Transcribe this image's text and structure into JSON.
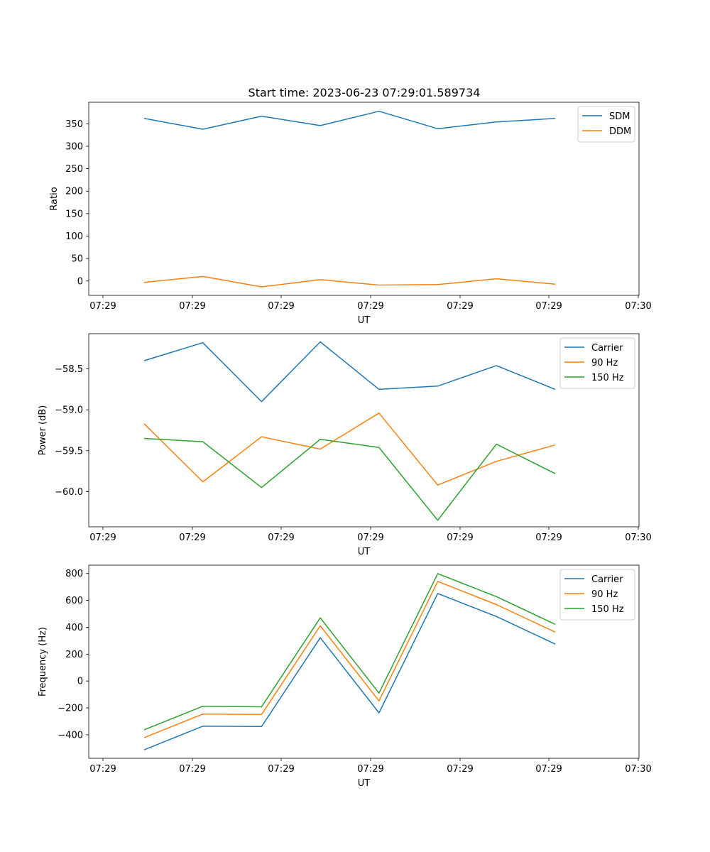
{
  "figure": {
    "title": "Start time: 2023-06-23 07:29:01.589734"
  },
  "chart_data": [
    {
      "type": "line",
      "xlabel": "UT",
      "ylabel": "Ratio",
      "x_tick_labels": [
        "07:29",
        "07:29",
        "07:29",
        "07:29",
        "07:29",
        "07:29",
        "07:30"
      ],
      "y_ticks": [
        0,
        50,
        100,
        150,
        200,
        250,
        300,
        350
      ],
      "ylim": [
        -32,
        398
      ],
      "legend": "top-right",
      "series": [
        {
          "name": "SDM",
          "color": "#1f77b4",
          "values": [
            362,
            338,
            367,
            346,
            378,
            339,
            354,
            362
          ]
        },
        {
          "name": "DDM",
          "color": "#ff7f0e",
          "values": [
            -3,
            10,
            -13,
            3,
            -9,
            -8,
            5,
            -7
          ]
        }
      ]
    },
    {
      "type": "line",
      "xlabel": "UT",
      "ylabel": "Power (dB)",
      "x_tick_labels": [
        "07:29",
        "07:29",
        "07:29",
        "07:29",
        "07:29",
        "07:29",
        "07:30"
      ],
      "y_ticks": [
        -60.0,
        -59.5,
        -59.0,
        -58.5
      ],
      "y_tick_labels": [
        "−60.0",
        "−59.5",
        "−59.0",
        "−58.5"
      ],
      "ylim": [
        -60.43,
        -58.07
      ],
      "legend": "top-right",
      "series": [
        {
          "name": "Carrier",
          "color": "#1f77b4",
          "values": [
            -58.4,
            -58.18,
            -58.9,
            -58.17,
            -58.75,
            -58.71,
            -58.46,
            -58.75
          ]
        },
        {
          "name": "90 Hz",
          "color": "#ff7f0e",
          "values": [
            -59.17,
            -59.88,
            -59.33,
            -59.48,
            -59.04,
            -59.92,
            -59.63,
            -59.43
          ]
        },
        {
          "name": "150 Hz",
          "color": "#2ca02c",
          "values": [
            -59.35,
            -59.39,
            -59.95,
            -59.36,
            -59.46,
            -60.35,
            -59.42,
            -59.78
          ]
        }
      ]
    },
    {
      "type": "line",
      "xlabel": "UT",
      "ylabel": "Frequency (Hz)",
      "x_tick_labels": [
        "07:29",
        "07:29",
        "07:29",
        "07:29",
        "07:29",
        "07:29",
        "07:30"
      ],
      "y_ticks": [
        -400,
        -200,
        0,
        200,
        400,
        600,
        800
      ],
      "y_tick_labels": [
        "−400",
        "−200",
        "0",
        "200",
        "400",
        "600",
        "800"
      ],
      "ylim": [
        -575,
        862
      ],
      "legend": "top-right",
      "series": [
        {
          "name": "Carrier",
          "color": "#1f77b4",
          "values": [
            -512,
            -336,
            -339,
            322,
            -237,
            651,
            480,
            275
          ]
        },
        {
          "name": "90 Hz",
          "color": "#ff7f0e",
          "values": [
            -421,
            -246,
            -249,
            411,
            -148,
            741,
            569,
            364
          ]
        },
        {
          "name": "150 Hz",
          "color": "#2ca02c",
          "values": [
            -363,
            -188,
            -192,
            470,
            -90,
            799,
            628,
            422
          ]
        }
      ]
    }
  ]
}
